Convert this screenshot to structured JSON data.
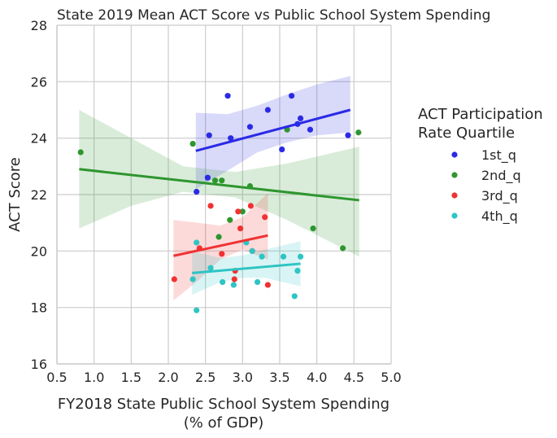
{
  "chart_data": {
    "type": "scatter",
    "title": "State 2019 Mean ACT Score vs Public School System Spending",
    "xlabel_lines": [
      "FY2018 State Public School System Spending",
      "(% of GDP)"
    ],
    "ylabel": "ACT Score",
    "xlim": [
      0.5,
      5.0
    ],
    "ylim": [
      16,
      28
    ],
    "xticks": [
      "0.5",
      "1.0",
      "1.5",
      "2.0",
      "2.5",
      "3.0",
      "3.5",
      "4.0",
      "4.5",
      "5.0"
    ],
    "yticks": [
      "16",
      "18",
      "20",
      "22",
      "24",
      "26",
      "28"
    ],
    "grid": true,
    "legend": {
      "title_lines": [
        "ACT Participation",
        "Rate Quartile"
      ],
      "placement": "right"
    },
    "series": [
      {
        "name": "1st_q",
        "color": "#2a2ae6",
        "fit": {
          "x": [
            2.37,
            4.45
          ],
          "y": [
            23.55,
            25.0
          ]
        },
        "band": {
          "x": [
            2.37,
            2.8,
            3.2,
            3.6,
            4.0,
            4.45
          ],
          "upper": [
            24.9,
            24.85,
            25.15,
            25.55,
            25.9,
            26.2
          ],
          "lower": [
            22.2,
            22.85,
            23.5,
            23.85,
            24.1,
            24.2
          ]
        },
        "points": [
          {
            "x": 2.38,
            "y": 22.1
          },
          {
            "x": 2.53,
            "y": 22.6
          },
          {
            "x": 2.55,
            "y": 24.1
          },
          {
            "x": 2.8,
            "y": 25.5
          },
          {
            "x": 2.84,
            "y": 24.0
          },
          {
            "x": 3.1,
            "y": 24.4
          },
          {
            "x": 3.34,
            "y": 25.0
          },
          {
            "x": 3.53,
            "y": 23.6
          },
          {
            "x": 3.66,
            "y": 25.5
          },
          {
            "x": 3.74,
            "y": 24.5
          },
          {
            "x": 3.78,
            "y": 24.7
          },
          {
            "x": 3.91,
            "y": 24.3
          },
          {
            "x": 4.42,
            "y": 24.1
          }
        ]
      },
      {
        "name": "2nd_q",
        "color": "#2e962e",
        "fit": {
          "x": [
            0.8,
            4.57
          ],
          "y": [
            22.9,
            21.8
          ]
        },
        "band": {
          "x": [
            0.8,
            1.5,
            2.2,
            2.9,
            3.6,
            4.57
          ],
          "upper": [
            25.0,
            24.0,
            23.0,
            22.8,
            23.1,
            23.7
          ],
          "lower": [
            20.8,
            21.6,
            22.1,
            21.9,
            21.1,
            19.8
          ]
        },
        "points": [
          {
            "x": 0.82,
            "y": 23.5
          },
          {
            "x": 2.33,
            "y": 23.8
          },
          {
            "x": 2.63,
            "y": 22.5
          },
          {
            "x": 2.72,
            "y": 22.5
          },
          {
            "x": 2.68,
            "y": 20.5
          },
          {
            "x": 2.83,
            "y": 21.1
          },
          {
            "x": 3.0,
            "y": 21.4
          },
          {
            "x": 3.1,
            "y": 22.3
          },
          {
            "x": 3.6,
            "y": 24.3
          },
          {
            "x": 3.95,
            "y": 20.8
          },
          {
            "x": 4.35,
            "y": 20.1
          },
          {
            "x": 4.56,
            "y": 24.2
          }
        ]
      },
      {
        "name": "3rd_q",
        "color": "#f03232",
        "fit": {
          "x": [
            2.07,
            3.34
          ],
          "y": [
            19.83,
            20.55
          ]
        },
        "band": {
          "x": [
            2.07,
            2.4,
            2.7,
            3.0,
            3.34
          ],
          "upper": [
            21.1,
            21.0,
            20.9,
            21.2,
            22.05
          ],
          "lower": [
            18.25,
            18.95,
            19.7,
            20.05,
            19.7
          ]
        },
        "points": [
          {
            "x": 2.08,
            "y": 19.0
          },
          {
            "x": 2.42,
            "y": 20.1
          },
          {
            "x": 2.57,
            "y": 21.6
          },
          {
            "x": 2.72,
            "y": 19.9
          },
          {
            "x": 2.9,
            "y": 19.3
          },
          {
            "x": 2.89,
            "y": 19.0
          },
          {
            "x": 2.94,
            "y": 21.4
          },
          {
            "x": 2.97,
            "y": 20.8
          },
          {
            "x": 3.11,
            "y": 21.6
          },
          {
            "x": 3.13,
            "y": 20.0
          },
          {
            "x": 3.3,
            "y": 21.2
          },
          {
            "x": 3.34,
            "y": 18.8
          }
        ]
      },
      {
        "name": "4th_q",
        "color": "#2ec4c4",
        "fit": {
          "x": [
            2.32,
            3.78
          ],
          "y": [
            19.22,
            19.55
          ]
        },
        "band": {
          "x": [
            2.32,
            2.7,
            3.0,
            3.3,
            3.78
          ],
          "upper": [
            20.0,
            19.75,
            19.85,
            20.05,
            20.35
          ],
          "lower": [
            18.45,
            18.9,
            19.05,
            19.05,
            18.75
          ]
        },
        "points": [
          {
            "x": 2.33,
            "y": 19.0
          },
          {
            "x": 2.38,
            "y": 20.3
          },
          {
            "x": 2.38,
            "y": 17.9
          },
          {
            "x": 2.57,
            "y": 19.4
          },
          {
            "x": 2.73,
            "y": 18.9
          },
          {
            "x": 2.88,
            "y": 18.8
          },
          {
            "x": 3.05,
            "y": 20.3
          },
          {
            "x": 3.13,
            "y": 20.0
          },
          {
            "x": 3.2,
            "y": 18.9
          },
          {
            "x": 3.26,
            "y": 19.8
          },
          {
            "x": 3.55,
            "y": 19.8
          },
          {
            "x": 3.7,
            "y": 18.4
          },
          {
            "x": 3.74,
            "y": 19.3
          },
          {
            "x": 3.78,
            "y": 19.8
          }
        ]
      }
    ]
  }
}
